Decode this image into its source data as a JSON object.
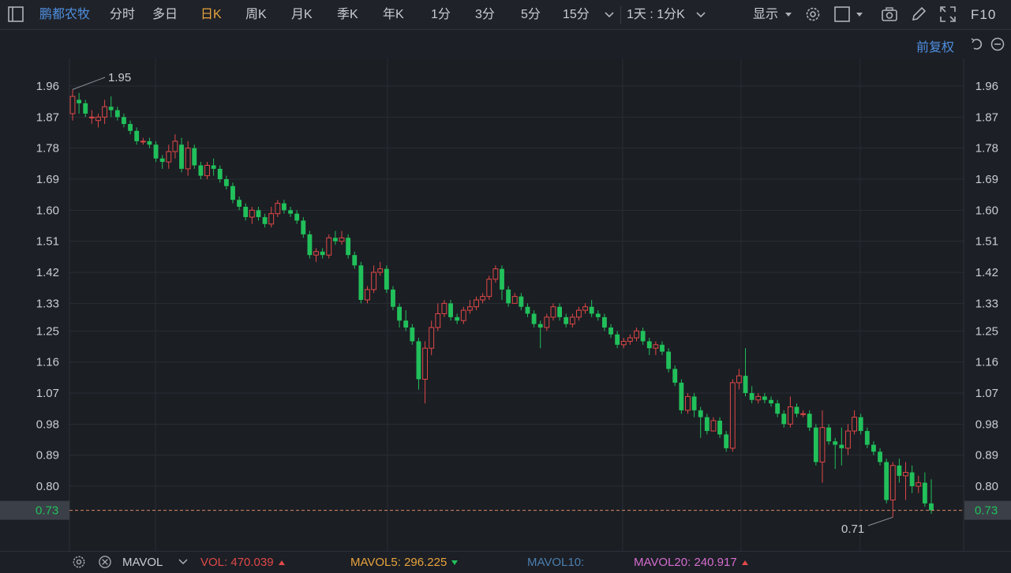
{
  "toolbar": {
    "stock_name": "鹏都农牧",
    "periods": [
      "分时",
      "多日",
      "日K",
      "周K",
      "月K",
      "季K",
      "年K",
      "1分",
      "3分",
      "5分",
      "15分"
    ],
    "active_period": "日K",
    "combo": "1天 : 1分K",
    "display_label": "显示",
    "f10_label": "F10"
  },
  "subbar": {
    "adjust_label": "前复权"
  },
  "colors": {
    "up": "#e04848",
    "down": "#21c05b",
    "accent": "#e8a33d",
    "link": "#4f8fe0"
  },
  "volume_bar": {
    "indicator": "MAVOL",
    "vol_label": "VOL:",
    "vol_value": "470.039",
    "vol_color": "#e04848",
    "mavol5_label": "MAVOL5:",
    "mavol5_value": "296.225",
    "mavol5_color": "#e8a33d",
    "mavol10_label": "MAVOL10:",
    "mavol10_value": "",
    "mavol10_color": "#4a7fb0",
    "mavol20_label": "MAVOL20:",
    "mavol20_value": "240.917",
    "mavol20_color": "#d66dd0"
  },
  "chart_data": {
    "type": "candlestick",
    "y_ticks": [
      "1.96",
      "1.87",
      "1.78",
      "1.69",
      "1.60",
      "1.51",
      "1.42",
      "1.33",
      "1.25",
      "1.16",
      "1.07",
      "0.98",
      "0.89",
      "0.80"
    ],
    "ylim": [
      0.7,
      2.0
    ],
    "current_price": "0.73",
    "max_label": "1.95",
    "min_label": "0.71",
    "grid": true,
    "candles": [
      [
        1.88,
        1.93,
        1.95,
        1.86
      ],
      [
        1.92,
        1.91,
        1.94,
        1.88
      ],
      [
        1.91,
        1.88,
        1.92,
        1.87
      ],
      [
        1.87,
        1.87,
        1.89,
        1.85
      ],
      [
        1.86,
        1.87,
        1.88,
        1.84
      ],
      [
        1.87,
        1.9,
        1.92,
        1.85
      ],
      [
        1.9,
        1.89,
        1.93,
        1.87
      ],
      [
        1.89,
        1.87,
        1.9,
        1.86
      ],
      [
        1.87,
        1.85,
        1.88,
        1.84
      ],
      [
        1.85,
        1.83,
        1.86,
        1.82
      ],
      [
        1.83,
        1.8,
        1.84,
        1.79
      ],
      [
        1.8,
        1.8,
        1.81,
        1.79
      ],
      [
        1.8,
        1.79,
        1.81,
        1.78
      ],
      [
        1.79,
        1.75,
        1.8,
        1.74
      ],
      [
        1.75,
        1.74,
        1.76,
        1.72
      ],
      [
        1.74,
        1.77,
        1.79,
        1.72
      ],
      [
        1.77,
        1.8,
        1.82,
        1.75
      ],
      [
        1.79,
        1.72,
        1.81,
        1.71
      ],
      [
        1.72,
        1.78,
        1.8,
        1.7
      ],
      [
        1.78,
        1.73,
        1.79,
        1.72
      ],
      [
        1.73,
        1.7,
        1.74,
        1.69
      ],
      [
        1.7,
        1.73,
        1.74,
        1.69
      ],
      [
        1.73,
        1.72,
        1.75,
        1.7
      ],
      [
        1.72,
        1.69,
        1.73,
        1.68
      ],
      [
        1.69,
        1.67,
        1.7,
        1.66
      ],
      [
        1.67,
        1.63,
        1.68,
        1.62
      ],
      [
        1.63,
        1.61,
        1.64,
        1.6
      ],
      [
        1.61,
        1.58,
        1.62,
        1.57
      ],
      [
        1.58,
        1.6,
        1.61,
        1.56
      ],
      [
        1.6,
        1.58,
        1.61,
        1.57
      ],
      [
        1.58,
        1.56,
        1.59,
        1.55
      ],
      [
        1.56,
        1.59,
        1.61,
        1.55
      ],
      [
        1.59,
        1.62,
        1.63,
        1.58
      ],
      [
        1.62,
        1.6,
        1.63,
        1.59
      ],
      [
        1.6,
        1.59,
        1.61,
        1.58
      ],
      [
        1.59,
        1.57,
        1.6,
        1.56
      ],
      [
        1.57,
        1.53,
        1.58,
        1.52
      ],
      [
        1.53,
        1.47,
        1.54,
        1.46
      ],
      [
        1.47,
        1.48,
        1.49,
        1.45
      ],
      [
        1.48,
        1.47,
        1.49,
        1.46
      ],
      [
        1.47,
        1.52,
        1.53,
        1.46
      ],
      [
        1.52,
        1.51,
        1.54,
        1.5
      ],
      [
        1.51,
        1.52,
        1.54,
        1.5
      ],
      [
        1.52,
        1.47,
        1.53,
        1.46
      ],
      [
        1.47,
        1.44,
        1.48,
        1.43
      ],
      [
        1.44,
        1.34,
        1.45,
        1.33
      ],
      [
        1.34,
        1.37,
        1.38,
        1.33
      ],
      [
        1.37,
        1.42,
        1.44,
        1.36
      ],
      [
        1.42,
        1.43,
        1.45,
        1.41
      ],
      [
        1.43,
        1.37,
        1.44,
        1.36
      ],
      [
        1.37,
        1.32,
        1.38,
        1.31
      ],
      [
        1.32,
        1.28,
        1.33,
        1.26
      ],
      [
        1.28,
        1.26,
        1.31,
        1.25
      ],
      [
        1.26,
        1.22,
        1.27,
        1.21
      ],
      [
        1.22,
        1.11,
        1.23,
        1.08
      ],
      [
        1.11,
        1.2,
        1.22,
        1.04
      ],
      [
        1.2,
        1.26,
        1.28,
        1.18
      ],
      [
        1.26,
        1.3,
        1.33,
        1.25
      ],
      [
        1.3,
        1.33,
        1.34,
        1.29
      ],
      [
        1.33,
        1.29,
        1.34,
        1.28
      ],
      [
        1.29,
        1.28,
        1.3,
        1.27
      ],
      [
        1.28,
        1.31,
        1.32,
        1.27
      ],
      [
        1.31,
        1.32,
        1.34,
        1.3
      ],
      [
        1.32,
        1.34,
        1.35,
        1.31
      ],
      [
        1.34,
        1.35,
        1.36,
        1.33
      ],
      [
        1.35,
        1.4,
        1.41,
        1.34
      ],
      [
        1.4,
        1.43,
        1.44,
        1.39
      ],
      [
        1.43,
        1.37,
        1.44,
        1.34
      ],
      [
        1.37,
        1.33,
        1.38,
        1.32
      ],
      [
        1.33,
        1.35,
        1.36,
        1.33
      ],
      [
        1.35,
        1.32,
        1.36,
        1.31
      ],
      [
        1.32,
        1.3,
        1.33,
        1.29
      ],
      [
        1.3,
        1.27,
        1.31,
        1.26
      ],
      [
        1.27,
        1.26,
        1.28,
        1.2
      ],
      [
        1.26,
        1.29,
        1.3,
        1.25
      ],
      [
        1.29,
        1.32,
        1.33,
        1.28
      ],
      [
        1.32,
        1.29,
        1.33,
        1.28
      ],
      [
        1.29,
        1.27,
        1.3,
        1.26
      ],
      [
        1.27,
        1.29,
        1.3,
        1.26
      ],
      [
        1.29,
        1.31,
        1.32,
        1.28
      ],
      [
        1.31,
        1.32,
        1.33,
        1.3
      ],
      [
        1.32,
        1.3,
        1.34,
        1.29
      ],
      [
        1.3,
        1.29,
        1.31,
        1.28
      ],
      [
        1.29,
        1.26,
        1.3,
        1.25
      ],
      [
        1.26,
        1.24,
        1.27,
        1.23
      ],
      [
        1.24,
        1.21,
        1.25,
        1.2
      ],
      [
        1.21,
        1.22,
        1.23,
        1.2
      ],
      [
        1.22,
        1.23,
        1.24,
        1.21
      ],
      [
        1.23,
        1.25,
        1.26,
        1.22
      ],
      [
        1.25,
        1.22,
        1.26,
        1.21
      ],
      [
        1.22,
        1.2,
        1.23,
        1.18
      ],
      [
        1.2,
        1.21,
        1.22,
        1.18
      ],
      [
        1.21,
        1.19,
        1.22,
        1.18
      ],
      [
        1.19,
        1.14,
        1.2,
        1.13
      ],
      [
        1.14,
        1.1,
        1.15,
        1.09
      ],
      [
        1.1,
        1.02,
        1.11,
        1.01
      ],
      [
        1.02,
        1.06,
        1.07,
        1.01
      ],
      [
        1.06,
        1.02,
        1.07,
        1.0
      ],
      [
        1.02,
        1.0,
        1.03,
        0.94
      ],
      [
        1.0,
        0.96,
        1.01,
        0.95
      ],
      [
        0.96,
        0.99,
        1.0,
        0.96
      ],
      [
        0.99,
        0.95,
        1.0,
        0.94
      ],
      [
        0.95,
        0.91,
        0.96,
        0.9
      ],
      [
        0.91,
        1.1,
        1.11,
        0.9
      ],
      [
        1.1,
        1.12,
        1.14,
        1.08
      ],
      [
        1.12,
        1.07,
        1.2,
        1.06
      ],
      [
        1.07,
        1.05,
        1.09,
        1.04
      ],
      [
        1.05,
        1.06,
        1.07,
        1.04
      ],
      [
        1.06,
        1.05,
        1.07,
        1.04
      ],
      [
        1.05,
        1.04,
        1.06,
        1.03
      ],
      [
        1.04,
        1.01,
        1.05,
        1.0
      ],
      [
        1.01,
        0.98,
        1.02,
        0.97
      ],
      [
        0.98,
        1.03,
        1.06,
        0.97
      ],
      [
        1.03,
        1.01,
        1.04,
        1.0
      ],
      [
        1.01,
        1.01,
        1.02,
        1.0
      ],
      [
        1.01,
        0.97,
        1.02,
        0.96
      ],
      [
        0.97,
        0.87,
        0.98,
        0.86
      ],
      [
        0.87,
        0.97,
        1.02,
        0.81
      ],
      [
        0.97,
        0.93,
        0.98,
        0.92
      ],
      [
        0.93,
        0.92,
        0.94,
        0.85
      ],
      [
        0.92,
        0.91,
        0.97,
        0.86
      ],
      [
        0.91,
        0.96,
        0.98,
        0.89
      ],
      [
        0.96,
        1.0,
        1.02,
        0.95
      ],
      [
        1.0,
        0.96,
        1.01,
        0.95
      ],
      [
        0.96,
        0.92,
        0.97,
        0.91
      ],
      [
        0.92,
        0.9,
        0.93,
        0.89
      ],
      [
        0.9,
        0.87,
        0.91,
        0.86
      ],
      [
        0.87,
        0.76,
        0.88,
        0.75
      ],
      [
        0.76,
        0.86,
        0.87,
        0.71
      ],
      [
        0.86,
        0.83,
        0.88,
        0.81
      ],
      [
        0.83,
        0.84,
        0.87,
        0.76
      ],
      [
        0.84,
        0.8,
        0.86,
        0.78
      ],
      [
        0.8,
        0.81,
        0.83,
        0.78
      ],
      [
        0.81,
        0.75,
        0.84,
        0.74
      ],
      [
        0.75,
        0.73,
        0.82,
        0.72
      ]
    ]
  }
}
